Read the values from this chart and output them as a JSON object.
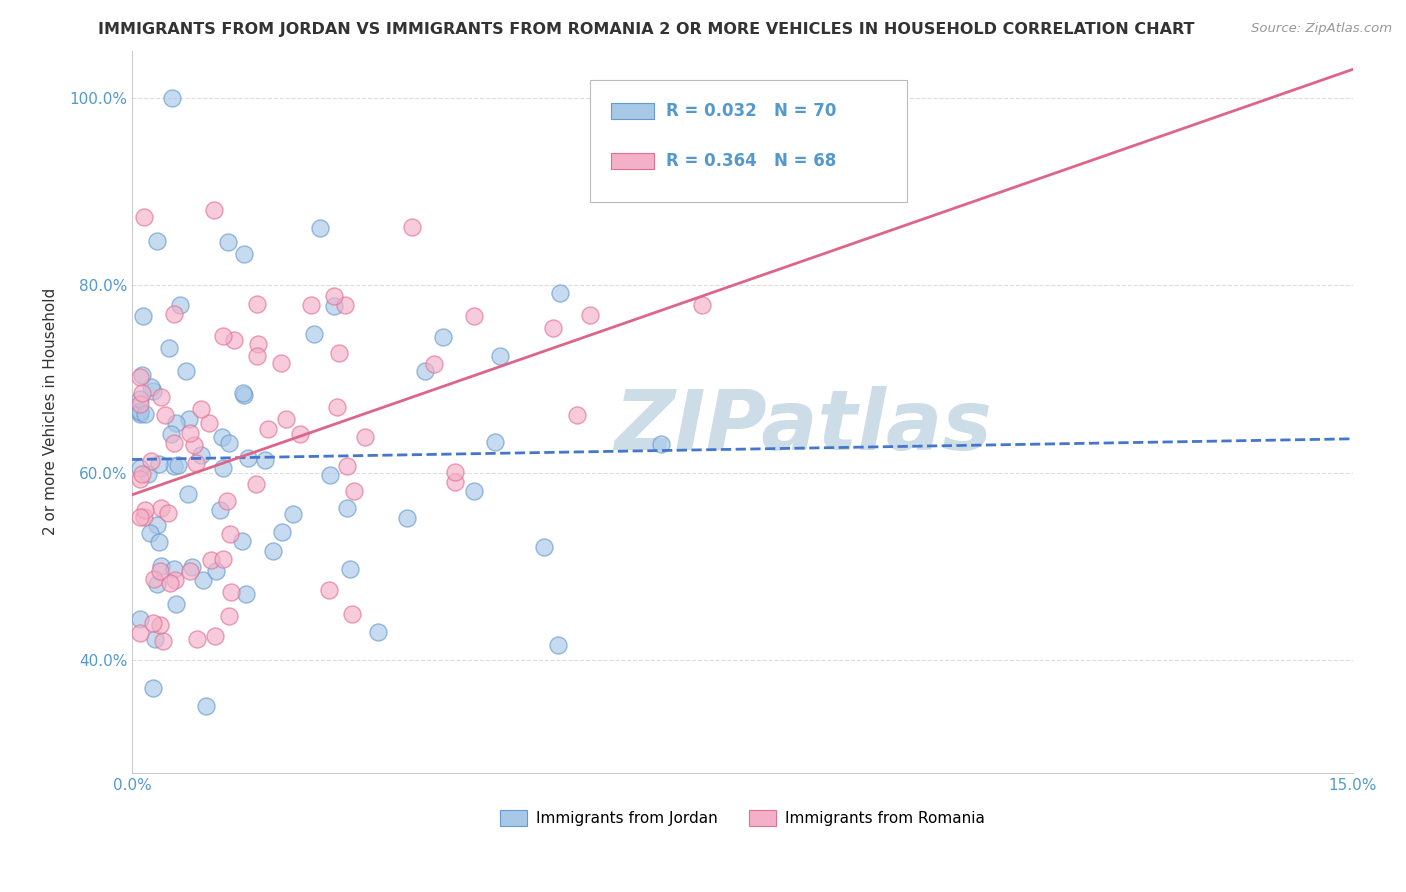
{
  "title": "IMMIGRANTS FROM JORDAN VS IMMIGRANTS FROM ROMANIA 2 OR MORE VEHICLES IN HOUSEHOLD CORRELATION CHART",
  "source": "Source: ZipAtlas.com",
  "ylabel": "2 or more Vehicles in Household",
  "xlim": [
    0.0,
    0.15
  ],
  "ylim": [
    0.28,
    1.05
  ],
  "xtick_vals": [
    0.0,
    0.03,
    0.06,
    0.09,
    0.12,
    0.15
  ],
  "xtick_labels": [
    "0.0%",
    "",
    "",
    "",
    "",
    "15.0%"
  ],
  "ytick_vals": [
    0.4,
    0.6,
    0.8,
    1.0
  ],
  "ytick_labels": [
    "40.0%",
    "60.0%",
    "80.0%",
    "100.0%"
  ],
  "jordan_R": 0.032,
  "jordan_N": 70,
  "romania_R": 0.364,
  "romania_N": 68,
  "jordan_color": "#a8c8e8",
  "jordan_edge": "#6699cc",
  "romania_color": "#f4b0c8",
  "romania_edge": "#e07090",
  "jordan_line_color": "#4477cc",
  "romania_line_color": "#dd6688",
  "watermark": "ZIPatlas",
  "watermark_color": "#ccdde8",
  "tick_color": "#5599cc",
  "grid_color": "#dddddd",
  "title_color": "#333333"
}
